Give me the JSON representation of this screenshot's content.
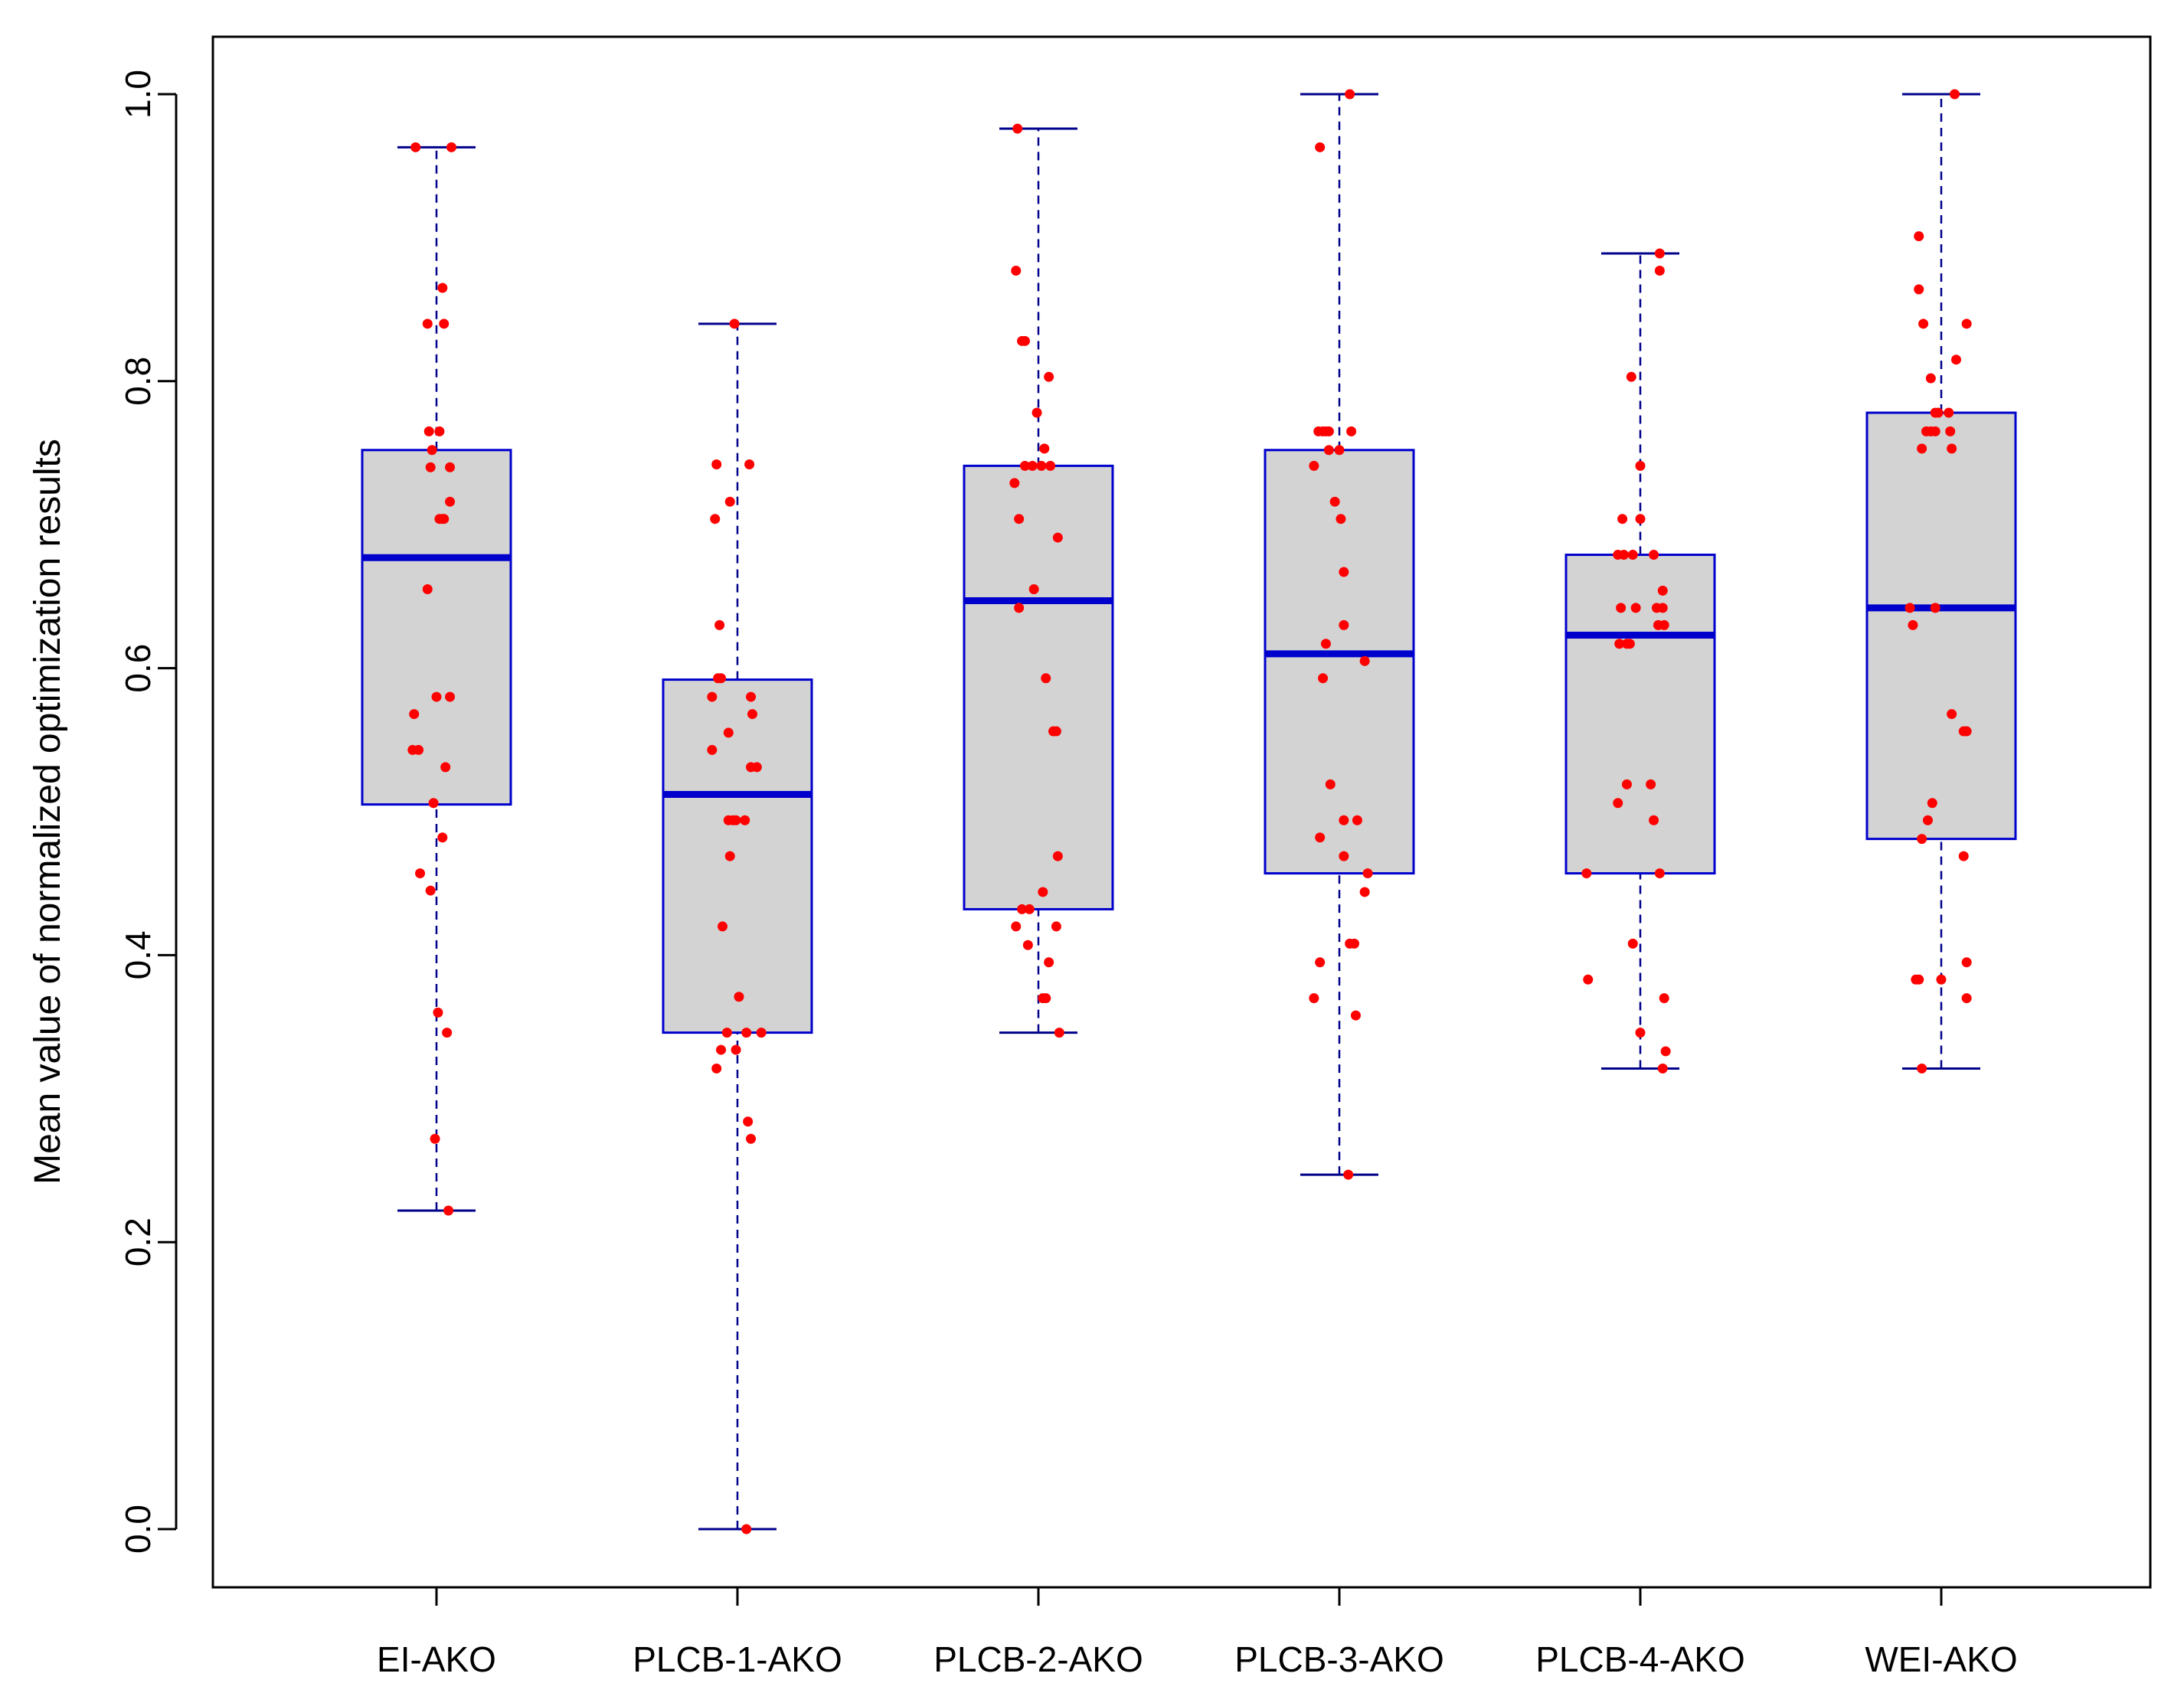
{
  "chart_data": {
    "type": "boxplot",
    "title": "",
    "xlabel": "",
    "ylabel": "Mean value of normalized optimization results",
    "ylim": [
      -0.08,
      1.04
    ],
    "yticks": [
      "0.0",
      "0.2",
      "0.4",
      "0.6",
      "0.8",
      "1.0"
    ],
    "ytick_values": [
      0.0,
      0.2,
      0.4,
      0.6,
      0.8,
      1.0
    ],
    "colors": {
      "box_fill": "#d3d3d3",
      "box_border": "#0000cd",
      "median": "#0000cd",
      "whisker": "#00008b",
      "point": "#ff0000",
      "axis": "#000000"
    },
    "series": [
      {
        "name": "EI-AKO",
        "min": 0.222,
        "q1": 0.505,
        "median": 0.677,
        "q3": 0.752,
        "max": 0.963,
        "points": [
          [
            -0.07,
            0.963
          ],
          [
            0.05,
            0.963
          ],
          [
            -0.03,
            0.84
          ],
          [
            0.02,
            0.865
          ],
          [
            0.025,
            0.84
          ],
          [
            -0.025,
            0.765
          ],
          [
            0.01,
            0.765
          ],
          [
            -0.015,
            0.752
          ],
          [
            -0.02,
            0.74
          ],
          [
            0.045,
            0.74
          ],
          [
            0.045,
            0.716
          ],
          [
            0.01,
            0.704
          ],
          [
            0.02,
            0.704
          ],
          [
            0.025,
            0.704
          ],
          [
            -0.03,
            0.655
          ],
          [
            0.0,
            0.58
          ],
          [
            0.045,
            0.58
          ],
          [
            -0.075,
            0.568
          ],
          [
            -0.08,
            0.543
          ],
          [
            -0.06,
            0.543
          ],
          [
            0.03,
            0.531
          ],
          [
            -0.01,
            0.506
          ],
          [
            0.02,
            0.482
          ],
          [
            -0.055,
            0.457
          ],
          [
            -0.02,
            0.445
          ],
          [
            0.005,
            0.36
          ],
          [
            0.035,
            0.346
          ],
          [
            -0.005,
            0.272
          ],
          [
            0.04,
            0.222
          ]
        ]
      },
      {
        "name": "PLCB-1-AKO",
        "min": 0.0,
        "q1": 0.346,
        "median": 0.512,
        "q3": 0.592,
        "max": 0.84,
        "points": [
          [
            -0.07,
            0.742
          ],
          [
            0.04,
            0.742
          ],
          [
            -0.075,
            0.704
          ],
          [
            -0.025,
            0.716
          ],
          [
            -0.06,
            0.63
          ],
          [
            -0.065,
            0.593
          ],
          [
            -0.055,
            0.593
          ],
          [
            -0.085,
            0.58
          ],
          [
            0.045,
            0.58
          ],
          [
            0.05,
            0.568
          ],
          [
            -0.03,
            0.555
          ],
          [
            -0.085,
            0.543
          ],
          [
            0.045,
            0.531
          ],
          [
            0.065,
            0.531
          ],
          [
            -0.03,
            0.494
          ],
          [
            -0.015,
            0.494
          ],
          [
            -0.005,
            0.494
          ],
          [
            0.025,
            0.494
          ],
          [
            -0.025,
            0.469
          ],
          [
            -0.05,
            0.42
          ],
          [
            0.005,
            0.371
          ],
          [
            -0.035,
            0.346
          ],
          [
            0.03,
            0.346
          ],
          [
            0.08,
            0.346
          ],
          [
            -0.055,
            0.334
          ],
          [
            -0.005,
            0.334
          ],
          [
            -0.07,
            0.321
          ],
          [
            0.035,
            0.284
          ],
          [
            0.045,
            0.272
          ],
          [
            -0.01,
            0.84
          ],
          [
            0.03,
            0.0
          ]
        ]
      },
      {
        "name": "PLCB-2-AKO",
        "min": 0.346,
        "q1": 0.432,
        "median": 0.647,
        "q3": 0.741,
        "max": 0.976,
        "points": [
          [
            -0.07,
            0.976
          ],
          [
            -0.075,
            0.877
          ],
          [
            -0.055,
            0.828
          ],
          [
            -0.045,
            0.828
          ],
          [
            0.035,
            0.803
          ],
          [
            -0.005,
            0.778
          ],
          [
            0.02,
            0.753
          ],
          [
            -0.045,
            0.741
          ],
          [
            -0.02,
            0.741
          ],
          [
            0.01,
            0.741
          ],
          [
            0.04,
            0.741
          ],
          [
            -0.08,
            0.729
          ],
          [
            -0.065,
            0.704
          ],
          [
            0.065,
            0.691
          ],
          [
            -0.015,
            0.655
          ],
          [
            -0.065,
            0.642
          ],
          [
            0.025,
            0.593
          ],
          [
            0.05,
            0.556
          ],
          [
            0.06,
            0.556
          ],
          [
            0.065,
            0.469
          ],
          [
            -0.055,
            0.432
          ],
          [
            -0.03,
            0.432
          ],
          [
            0.015,
            0.444
          ],
          [
            -0.075,
            0.42
          ],
          [
            0.06,
            0.42
          ],
          [
            -0.035,
            0.407
          ],
          [
            0.035,
            0.395
          ],
          [
            0.015,
            0.37
          ],
          [
            0.025,
            0.37
          ],
          [
            0.07,
            0.346
          ]
        ]
      },
      {
        "name": "PLCB-3-AKO",
        "min": 0.247,
        "q1": 0.457,
        "median": 0.61,
        "q3": 0.752,
        "max": 1.0,
        "points": [
          [
            -0.065,
            0.963
          ],
          [
            -0.07,
            0.765
          ],
          [
            -0.055,
            0.765
          ],
          [
            -0.045,
            0.765
          ],
          [
            -0.035,
            0.765
          ],
          [
            0.04,
            0.765
          ],
          [
            -0.035,
            0.752
          ],
          [
            0.0,
            0.752
          ],
          [
            -0.085,
            0.741
          ],
          [
            -0.015,
            0.716
          ],
          [
            0.005,
            0.704
          ],
          [
            0.015,
            0.667
          ],
          [
            0.015,
            0.63
          ],
          [
            -0.045,
            0.617
          ],
          [
            -0.055,
            0.593
          ],
          [
            0.085,
            0.605
          ],
          [
            -0.03,
            0.519
          ],
          [
            -0.065,
            0.482
          ],
          [
            0.015,
            0.494
          ],
          [
            0.06,
            0.494
          ],
          [
            0.015,
            0.469
          ],
          [
            0.095,
            0.457
          ],
          [
            0.085,
            0.444
          ],
          [
            0.035,
            0.408
          ],
          [
            0.05,
            0.408
          ],
          [
            -0.065,
            0.395
          ],
          [
            -0.085,
            0.37
          ],
          [
            0.055,
            0.358
          ],
          [
            0.035,
            1.0
          ],
          [
            0.03,
            0.247
          ]
        ]
      },
      {
        "name": "PLCB-4-AKO",
        "min": 0.321,
        "q1": 0.457,
        "median": 0.623,
        "q3": 0.679,
        "max": 0.889,
        "points": [
          [
            0.065,
            0.889
          ],
          [
            0.065,
            0.877
          ],
          [
            -0.03,
            0.803
          ],
          [
            0.0,
            0.741
          ],
          [
            -0.06,
            0.704
          ],
          [
            0.0,
            0.704
          ],
          [
            -0.075,
            0.679
          ],
          [
            -0.055,
            0.679
          ],
          [
            -0.025,
            0.679
          ],
          [
            0.045,
            0.679
          ],
          [
            0.075,
            0.654
          ],
          [
            -0.065,
            0.642
          ],
          [
            -0.015,
            0.642
          ],
          [
            0.055,
            0.642
          ],
          [
            0.075,
            0.642
          ],
          [
            -0.07,
            0.617
          ],
          [
            -0.045,
            0.617
          ],
          [
            -0.035,
            0.617
          ],
          [
            0.06,
            0.63
          ],
          [
            0.08,
            0.63
          ],
          [
            -0.045,
            0.519
          ],
          [
            0.035,
            0.519
          ],
          [
            -0.075,
            0.506
          ],
          [
            0.045,
            0.494
          ],
          [
            -0.18,
            0.457
          ],
          [
            0.065,
            0.457
          ],
          [
            -0.025,
            0.408
          ],
          [
            -0.175,
            0.383
          ],
          [
            0.08,
            0.37
          ],
          [
            0.0,
            0.346
          ],
          [
            0.085,
            0.333
          ],
          [
            0.075,
            0.321
          ]
        ]
      },
      {
        "name": "WEI-AKO",
        "min": 0.321,
        "q1": 0.481,
        "median": 0.642,
        "q3": 0.778,
        "max": 1.0,
        "points": [
          [
            0.045,
            1.0
          ],
          [
            -0.075,
            0.901
          ],
          [
            -0.075,
            0.864
          ],
          [
            -0.06,
            0.84
          ],
          [
            0.085,
            0.84
          ],
          [
            0.05,
            0.815
          ],
          [
            -0.035,
            0.802
          ],
          [
            -0.02,
            0.778
          ],
          [
            -0.01,
            0.778
          ],
          [
            0.025,
            0.778
          ],
          [
            -0.05,
            0.765
          ],
          [
            -0.035,
            0.765
          ],
          [
            -0.02,
            0.765
          ],
          [
            0.03,
            0.765
          ],
          [
            -0.065,
            0.753
          ],
          [
            0.035,
            0.753
          ],
          [
            -0.105,
            0.642
          ],
          [
            -0.02,
            0.642
          ],
          [
            -0.095,
            0.63
          ],
          [
            0.035,
            0.568
          ],
          [
            0.075,
            0.556
          ],
          [
            0.085,
            0.556
          ],
          [
            -0.03,
            0.506
          ],
          [
            -0.045,
            0.494
          ],
          [
            -0.065,
            0.481
          ],
          [
            0.075,
            0.469
          ],
          [
            -0.085,
            0.383
          ],
          [
            -0.075,
            0.383
          ],
          [
            0.0,
            0.383
          ],
          [
            0.085,
            0.395
          ],
          [
            0.085,
            0.37
          ],
          [
            -0.065,
            0.321
          ]
        ]
      }
    ]
  }
}
